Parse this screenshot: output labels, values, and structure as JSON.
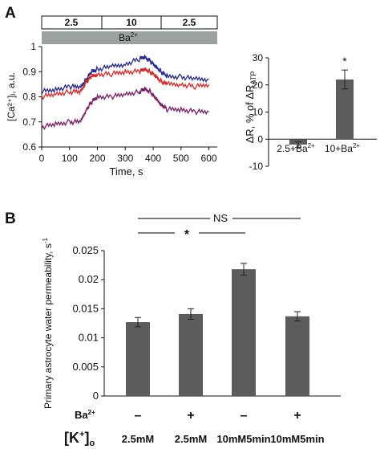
{
  "panel_a": {
    "letter": "A",
    "protocol_bar": {
      "segments": [
        {
          "label": "2.5",
          "from": 0,
          "to": 150
        },
        {
          "label": "10",
          "from": 150,
          "to": 420
        },
        {
          "label": "2.5",
          "from": 420,
          "to": 630
        }
      ],
      "ba_label": "Ba",
      "ba_sup": "2+"
    }
  },
  "panel_b": {
    "letter": "B"
  },
  "chart_data": [
    {
      "type": "line",
      "ylabel": "[Ca²⁺]ᵢ, a.u.",
      "xlabel": "Time, s",
      "xlim": [
        0,
        630
      ],
      "ylim": [
        0.6,
        1.0
      ],
      "x_ticks": [
        0,
        100,
        200,
        300,
        400,
        500,
        600
      ],
      "y_ticks": [
        0.6,
        0.7,
        0.8,
        0.9,
        1
      ],
      "y_tick_labels": [
        "0.6",
        "0.7",
        "0.8",
        "0.9",
        "1"
      ],
      "series": [
        {
          "color": "#2a2a8c",
          "x": [
            0,
            50,
            100,
            140,
            160,
            180,
            200,
            250,
            300,
            350,
            370,
            390,
            410,
            430,
            450,
            500,
            550,
            600
          ],
          "y": [
            0.82,
            0.83,
            0.84,
            0.84,
            0.87,
            0.9,
            0.91,
            0.92,
            0.93,
            0.95,
            0.96,
            0.94,
            0.92,
            0.9,
            0.88,
            0.88,
            0.87,
            0.87
          ]
        },
        {
          "color": "#d42a2a",
          "x": [
            0,
            50,
            100,
            140,
            160,
            180,
            200,
            250,
            300,
            350,
            370,
            390,
            410,
            430,
            450,
            500,
            550,
            600
          ],
          "y": [
            0.8,
            0.81,
            0.82,
            0.82,
            0.86,
            0.88,
            0.89,
            0.89,
            0.9,
            0.9,
            0.91,
            0.9,
            0.88,
            0.86,
            0.85,
            0.85,
            0.84,
            0.85
          ]
        },
        {
          "color": "#7a1f66",
          "x": [
            0,
            50,
            100,
            140,
            160,
            180,
            200,
            250,
            300,
            350,
            370,
            390,
            410,
            430,
            450,
            500,
            550,
            600
          ],
          "y": [
            0.68,
            0.69,
            0.7,
            0.7,
            0.75,
            0.78,
            0.8,
            0.8,
            0.81,
            0.82,
            0.83,
            0.82,
            0.79,
            0.77,
            0.75,
            0.75,
            0.74,
            0.74
          ]
        }
      ]
    },
    {
      "type": "bar",
      "ylabel": "ΔR, % of ΔR_ATP",
      "ylabel_main": "ΔR, % of ΔR",
      "ylabel_sub": "ATP",
      "categories": [
        "2.5+Ba²⁺",
        "10+Ba²⁺"
      ],
      "cat_main": [
        "2.5+Ba",
        "10+Ba"
      ],
      "cat_sup": [
        "2+",
        "2+"
      ],
      "values": [
        -2,
        22
      ],
      "errors": [
        1,
        3.5
      ],
      "ylim": [
        -10,
        30
      ],
      "y_ticks": [
        -10,
        0,
        10,
        20,
        30
      ],
      "y_tick_labels": [
        "-10",
        "0",
        "10",
        "20",
        "30"
      ],
      "significance": [
        "",
        "*"
      ]
    },
    {
      "type": "bar",
      "ylabel": "Primary astrocyte water permeability, s⁻¹",
      "ylabel_main": "Primary astrocyte water permeability, s",
      "ylabel_sup": "-1",
      "categories": [
        "2.5mM",
        "2.5mM",
        "10mM5min",
        "10mM5min"
      ],
      "ba_row_label": "Ba",
      "ba_row_sup": "2+",
      "ba_row": [
        "–",
        "+",
        "–",
        "+"
      ],
      "k_label": "[K",
      "k_sup": "+",
      "k_close": "]",
      "k_sub": "o",
      "values": [
        0.0127,
        0.0141,
        0.0218,
        0.0137
      ],
      "errors": [
        0.0008,
        0.0009,
        0.001,
        0.0008
      ],
      "ylim": [
        0,
        0.025
      ],
      "y_ticks": [
        0,
        0.005,
        0.01,
        0.015,
        0.02,
        0.025
      ],
      "y_tick_labels": [
        "0",
        "0.005",
        "0.01",
        "0.015",
        "0.02",
        "0.025"
      ],
      "annotations": {
        "star": "*",
        "ns": "NS"
      }
    }
  ]
}
